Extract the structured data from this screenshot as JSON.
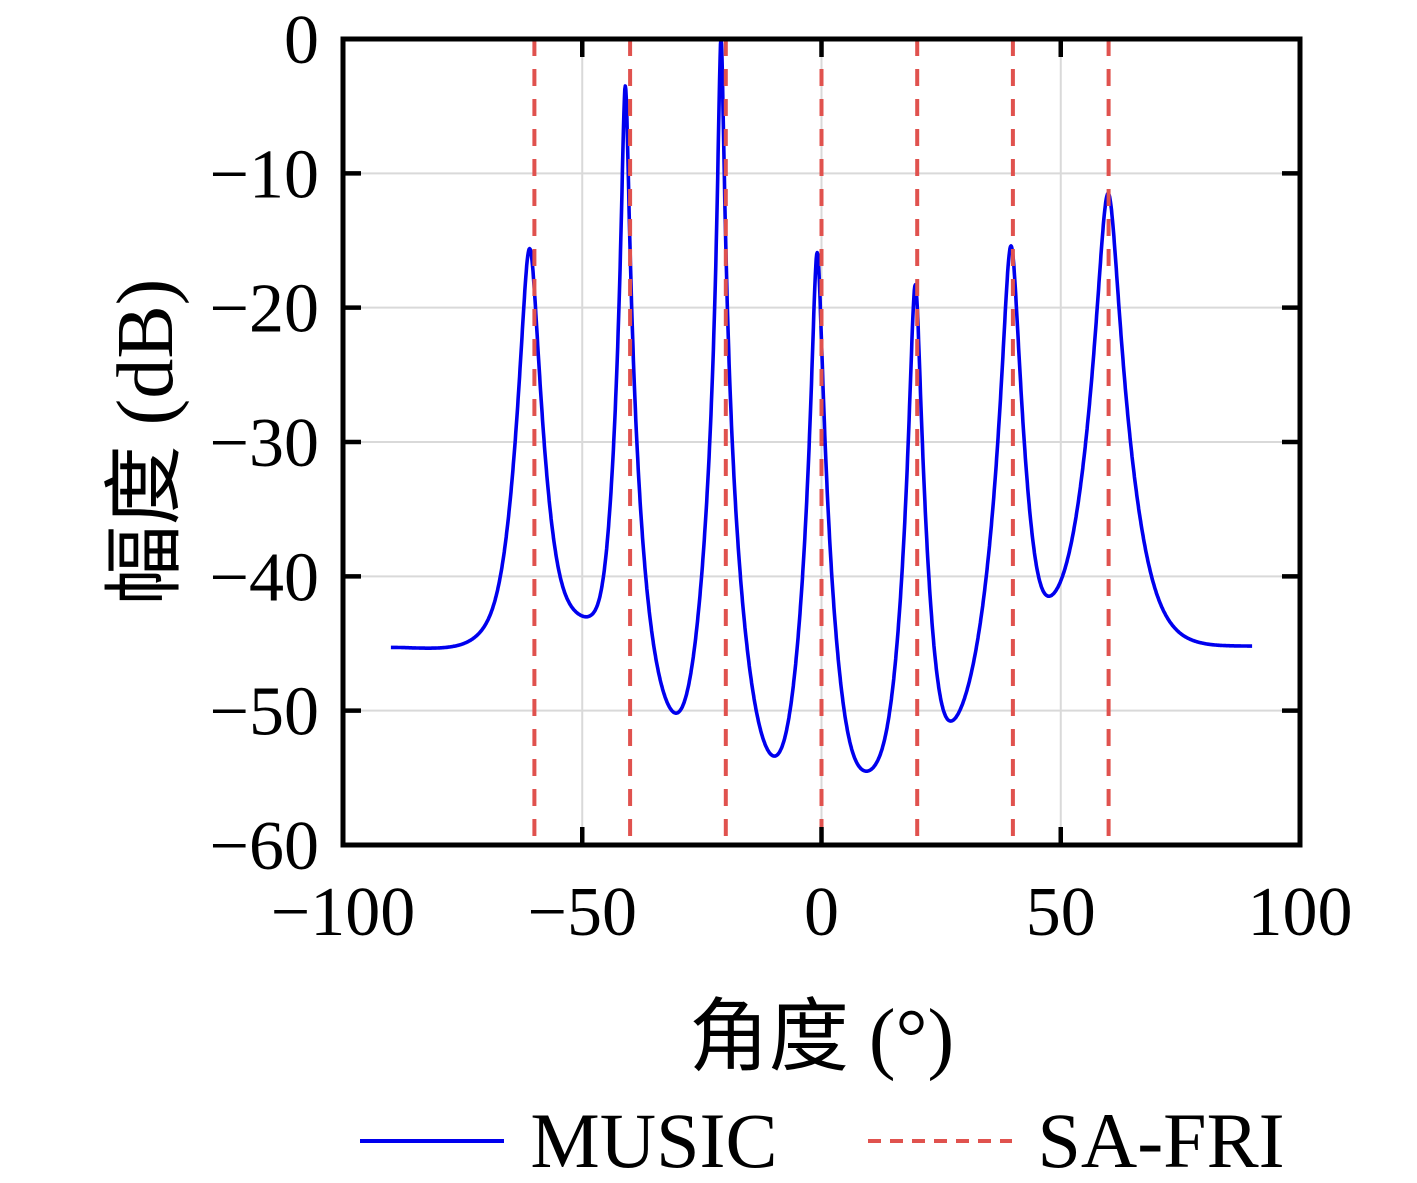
{
  "colors": {
    "background": "#ffffff",
    "frame": "#000000",
    "grid": "#d9d9d9",
    "tick": "#000000",
    "music_line": "#0000ee",
    "safri_line": "#e0524e"
  },
  "axis": {
    "x_label": "角度 (°)",
    "y_label": "幅度 (dB)",
    "x_tick_labels": [
      "−100",
      "−50",
      "0",
      "50",
      "100"
    ],
    "y_tick_labels": [
      "0",
      "−10",
      "−20",
      "−30",
      "−40",
      "−50",
      "−60"
    ]
  },
  "legend": {
    "entries": [
      {
        "label": "MUSIC",
        "style": "solid"
      },
      {
        "label": "SA-FRI",
        "style": "dashed"
      }
    ]
  },
  "chart_data": {
    "type": "line",
    "title": "",
    "xlabel": "角度 (°)",
    "ylabel": "幅度 (dB)",
    "xlim": [
      -100,
      100
    ],
    "ylim": [
      -60,
      0
    ],
    "xticks": [
      -100,
      -50,
      0,
      50,
      100
    ],
    "yticks": [
      0,
      -10,
      -20,
      -30,
      -40,
      -50,
      -60
    ],
    "x_gridlines": [
      -50,
      0,
      50
    ],
    "y_gridlines": [
      -10,
      -20,
      -30,
      -40,
      -50
    ],
    "grid": true,
    "legend_position": "bottom",
    "series": [
      {
        "name": "MUSIC",
        "style": "solid",
        "x_range": [
          -90,
          90
        ],
        "sample_step": 0.1,
        "peaks": [
          {
            "angle": -61.0,
            "peak_db": -15.6,
            "width": 1.6
          },
          {
            "angle": -41.0,
            "peak_db": -3.5,
            "width": 0.62
          },
          {
            "angle": -21.0,
            "peak_db": 0.0,
            "width": 0.5
          },
          {
            "angle": -0.9,
            "peak_db": -15.9,
            "width": 0.9
          },
          {
            "angle": 19.6,
            "peak_db": -18.3,
            "width": 0.95
          },
          {
            "angle": 39.6,
            "peak_db": -15.4,
            "width": 1.45
          },
          {
            "angle": 59.9,
            "peak_db": -11.5,
            "width": 1.9
          }
        ],
        "peak_exponent": 2.2,
        "baseline_points_deg_db": [
          [
            -90,
            -45.3
          ],
          [
            -76,
            -45.35
          ],
          [
            -48.5,
            -44.0
          ],
          [
            -29.5,
            -53.0
          ],
          [
            -9.5,
            -56.3
          ],
          [
            9.2,
            -56.1
          ],
          [
            30,
            -52.8
          ],
          [
            48.4,
            -44.0
          ],
          [
            76,
            -45.25
          ],
          [
            90,
            -45.25
          ]
        ],
        "valleys_db": {
          "minus48": -43.9,
          "minus29": -51.0,
          "minus9": -55.3,
          "plus9": -55.2,
          "plus30": -51.0,
          "plus48": -43.8,
          "tails": -45.3
        }
      },
      {
        "name": "SA-FRI",
        "style": "dashed",
        "vline_angles": [
          -60,
          -40,
          -20,
          0,
          20,
          40,
          60
        ]
      }
    ]
  }
}
